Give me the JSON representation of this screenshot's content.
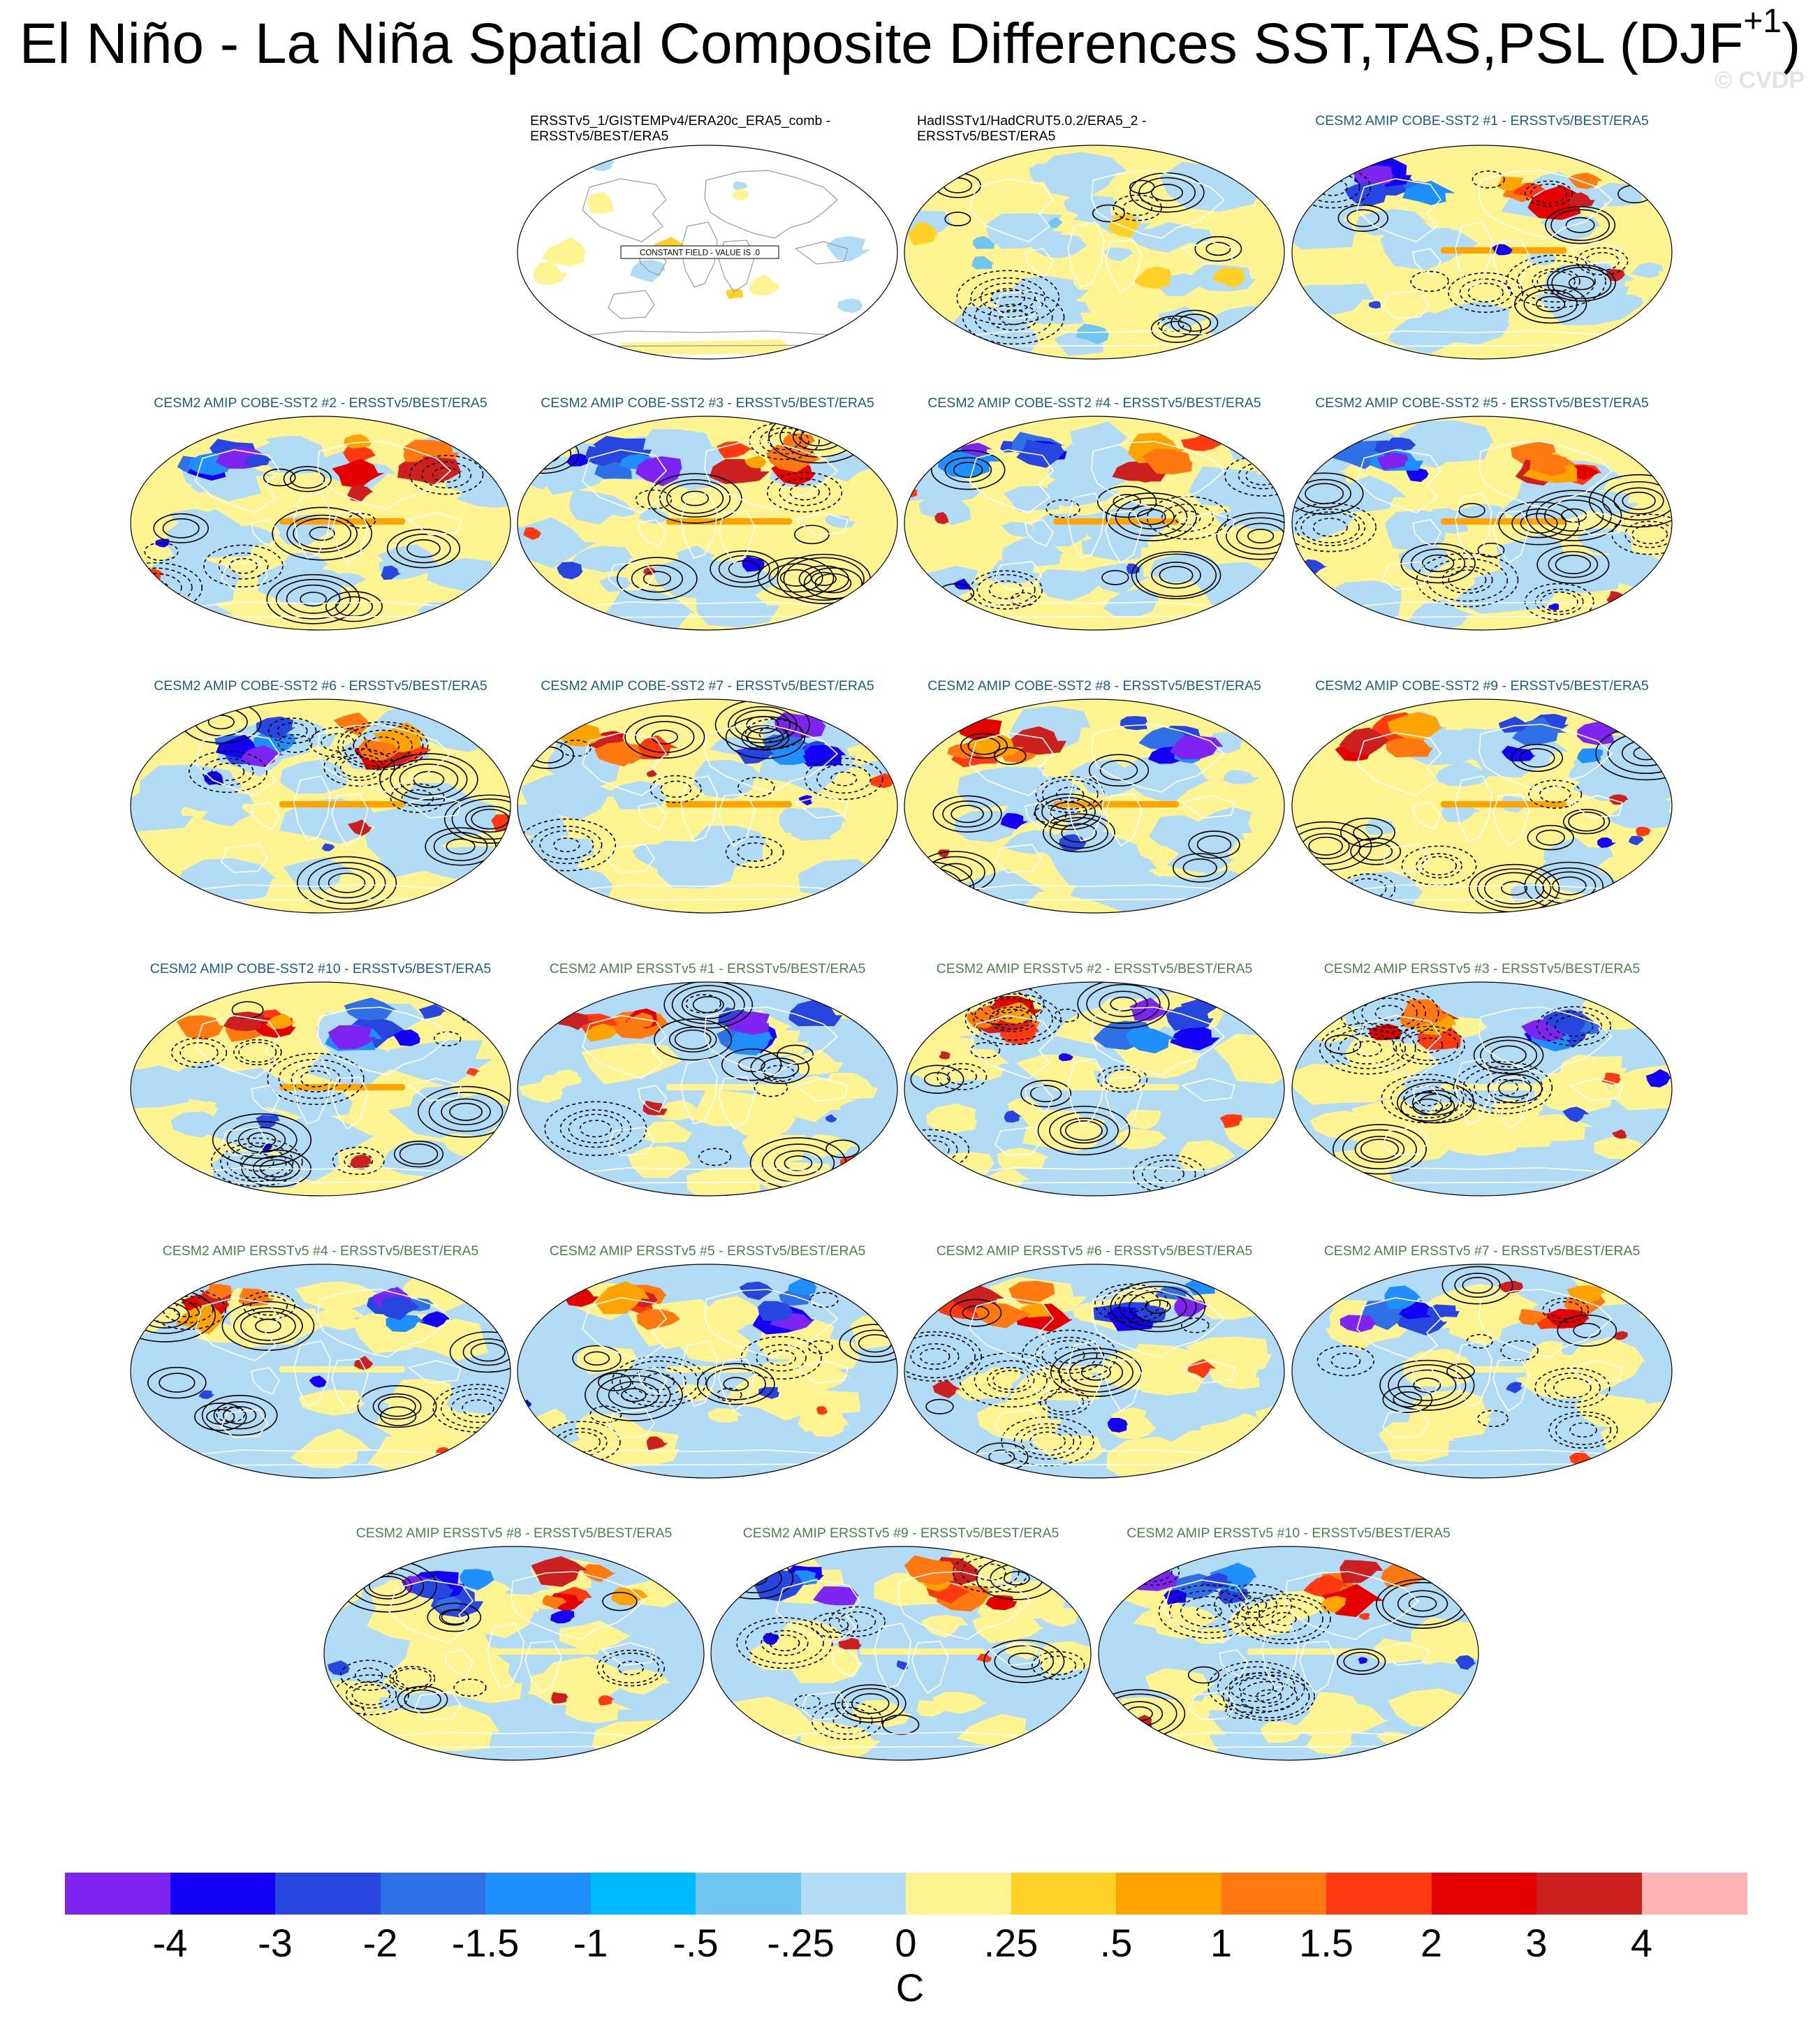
{
  "figure": {
    "title_main": "El Niño - La Niña Spatial Composite Differences SST,TAS,PSL (DJF",
    "title_sup": "+1",
    "title_close": ")",
    "watermark": "© CVDP"
  },
  "colors": {
    "ocean_neutral_cold": "#b2dcf5",
    "ocean_neutral_warm": "#fff491",
    "contour_line": "#000000",
    "coastline": "#ffffff",
    "obs_title_color": "#000000",
    "cobe_title_color": "#1a5f7e",
    "ersst_title_color": "#4f7f52"
  },
  "chart_data": {
    "type": "heatmap",
    "description_fields": [
      "SST",
      "TAS",
      "PSL"
    ],
    "colorbar": {
      "units": "C",
      "tick_labels": [
        "-4",
        "-3",
        "-2",
        "-1.5",
        "-1",
        "-.5",
        "-.25",
        "0",
        ".25",
        ".5",
        "1",
        "1.5",
        "2",
        "3",
        "4"
      ],
      "levels": [
        -4,
        -3,
        -2,
        -1.5,
        -1,
        -0.5,
        -0.25,
        0,
        0.25,
        0.5,
        1,
        1.5,
        2,
        3,
        4
      ],
      "colors": [
        "#7d24f0",
        "#1400f5",
        "#2746e0",
        "#3070e6",
        "#1f8fff",
        "#00baff",
        "#6fc6f2",
        "#b2dcf5",
        "#fff491",
        "#ffd127",
        "#ffa300",
        "#ff7810",
        "#ff3a10",
        "#e50000",
        "#cc2020",
        "#ffb3b3"
      ]
    },
    "panels": [
      {
        "title": "ERSSTv5_1/GISTEMPv4/ERA20c_ERA5_comb - ERSSTv5/BEST/ERA5",
        "group": "obs",
        "pattern": "constant",
        "annotation": "CONSTANT FIELD - VALUE IS .0",
        "seed": 1
      },
      {
        "title": "HadISSTv1/HadCRUT5.0.2/ERA5_2 - ERSSTv5/BEST/ERA5",
        "group": "obs",
        "pattern": "obs",
        "seed": 2
      },
      {
        "title": "CESM2 AMIP COBE-SST2 #1 - ERSSTv5/BEST/ERA5",
        "group": "cobe",
        "pattern": "model",
        "seed": 3
      },
      {
        "title": "CESM2 AMIP COBE-SST2 #2 - ERSSTv5/BEST/ERA5",
        "group": "cobe",
        "pattern": "model",
        "seed": 4
      },
      {
        "title": "CESM2 AMIP COBE-SST2 #3 - ERSSTv5/BEST/ERA5",
        "group": "cobe",
        "pattern": "model",
        "seed": 5
      },
      {
        "title": "CESM2 AMIP COBE-SST2 #4 - ERSSTv5/BEST/ERA5",
        "group": "cobe",
        "pattern": "model",
        "seed": 6
      },
      {
        "title": "CESM2 AMIP COBE-SST2 #5 - ERSSTv5/BEST/ERA5",
        "group": "cobe",
        "pattern": "model",
        "seed": 7
      },
      {
        "title": "CESM2 AMIP COBE-SST2 #6 - ERSSTv5/BEST/ERA5",
        "group": "cobe",
        "pattern": "model",
        "seed": 8
      },
      {
        "title": "CESM2 AMIP COBE-SST2 #7 - ERSSTv5/BEST/ERA5",
        "group": "cobe",
        "pattern": "model",
        "seed": 9
      },
      {
        "title": "CESM2 AMIP COBE-SST2 #8 - ERSSTv5/BEST/ERA5",
        "group": "cobe",
        "pattern": "model",
        "seed": 10
      },
      {
        "title": "CESM2 AMIP COBE-SST2 #9 - ERSSTv5/BEST/ERA5",
        "group": "cobe",
        "pattern": "model",
        "seed": 11
      },
      {
        "title": "CESM2 AMIP COBE-SST2 #10 - ERSSTv5/BEST/ERA5",
        "group": "cobe",
        "pattern": "model",
        "seed": 12
      },
      {
        "title": "CESM2 AMIP ERSSTv5 #1 - ERSSTv5/BEST/ERA5",
        "group": "ersst",
        "pattern": "model2",
        "seed": 13
      },
      {
        "title": "CESM2 AMIP ERSSTv5 #2 - ERSSTv5/BEST/ERA5",
        "group": "ersst",
        "pattern": "model2",
        "seed": 14
      },
      {
        "title": "CESM2 AMIP ERSSTv5 #3 - ERSSTv5/BEST/ERA5",
        "group": "ersst",
        "pattern": "model2",
        "seed": 15
      },
      {
        "title": "CESM2 AMIP ERSSTv5 #4 - ERSSTv5/BEST/ERA5",
        "group": "ersst",
        "pattern": "model2",
        "seed": 16
      },
      {
        "title": "CESM2 AMIP ERSSTv5 #5 - ERSSTv5/BEST/ERA5",
        "group": "ersst",
        "pattern": "model2",
        "seed": 17
      },
      {
        "title": "CESM2 AMIP ERSSTv5 #6 - ERSSTv5/BEST/ERA5",
        "group": "ersst",
        "pattern": "model2",
        "seed": 18
      },
      {
        "title": "CESM2 AMIP ERSSTv5 #7 - ERSSTv5/BEST/ERA5",
        "group": "ersst",
        "pattern": "model2",
        "seed": 19
      },
      {
        "title": "CESM2 AMIP ERSSTv5 #8 - ERSSTv5/BEST/ERA5",
        "group": "ersst",
        "pattern": "model2",
        "seed": 20
      },
      {
        "title": "CESM2 AMIP ERSSTv5 #9 - ERSSTv5/BEST/ERA5",
        "group": "ersst",
        "pattern": "model2",
        "seed": 21
      },
      {
        "title": "CESM2 AMIP ERSSTv5 #10 - ERSSTv5/BEST/ERA5",
        "group": "ersst",
        "pattern": "model2",
        "seed": 22
      }
    ]
  }
}
